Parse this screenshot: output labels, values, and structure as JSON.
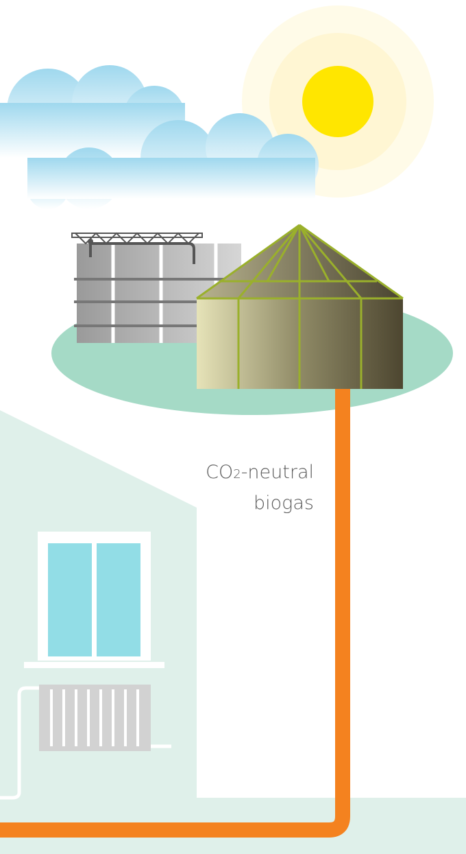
{
  "label": {
    "line1_prefix": "CO",
    "line1_sub": "2",
    "line1_suffix": "-neutral",
    "line2": "biogas"
  }
}
